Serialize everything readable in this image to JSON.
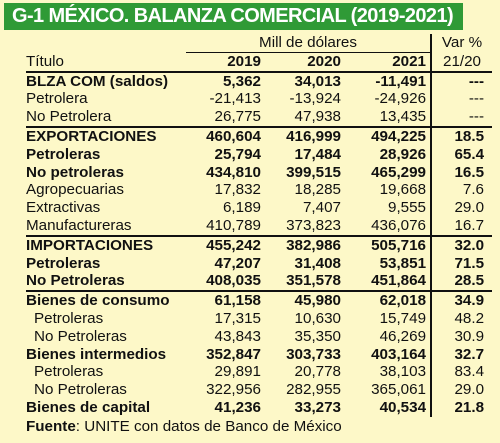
{
  "title": "G-1 MÉXICO. BALANZA COMERCIAL (2019-2021)",
  "header": {
    "unit": "Mill de dólares",
    "var_label": "Var %",
    "row_label": "Título",
    "years": [
      "2019",
      "2020",
      "2021"
    ],
    "var_period": "21/20"
  },
  "rows": [
    {
      "label": "BLZA COM (saldos)",
      "v2019": "5,362",
      "v2020": "34,013",
      "v2021": "-11,491",
      "var": "---"
    },
    {
      "label": "Petrolera",
      "v2019": "-21,413",
      "v2020": "-13,924",
      "v2021": "-24,926",
      "var": "---"
    },
    {
      "label": "No Petrolera",
      "v2019": "26,775",
      "v2020": "47,938",
      "v2021": "13,435",
      "var": "---"
    },
    {
      "label": "EXPORTACIONES",
      "v2019": "460,604",
      "v2020": "416,999",
      "v2021": "494,225",
      "var": "18.5"
    },
    {
      "label": "Petroleras",
      "v2019": "25,794",
      "v2020": "17,484",
      "v2021": "28,926",
      "var": "65.4"
    },
    {
      "label": "No petroleras",
      "v2019": "434,810",
      "v2020": "399,515",
      "v2021": "465,299",
      "var": "16.5"
    },
    {
      "label": "Agropecuarias",
      "v2019": "17,832",
      "v2020": "18,285",
      "v2021": "19,668",
      "var": "7.6"
    },
    {
      "label": "Extractivas",
      "v2019": "6,189",
      "v2020": "7,407",
      "v2021": "9,555",
      "var": "29.0"
    },
    {
      "label": "Manufactureras",
      "v2019": "410,789",
      "v2020": "373,823",
      "v2021": "436,076",
      "var": "16.7"
    },
    {
      "label": "IMPORTACIONES",
      "v2019": "455,242",
      "v2020": "382,986",
      "v2021": "505,716",
      "var": "32.0"
    },
    {
      "label": "Petroleras",
      "v2019": "47,207",
      "v2020": "31,408",
      "v2021": "53,851",
      "var": "71.5"
    },
    {
      "label": "No Petroleras",
      "v2019": "408,035",
      "v2020": "351,578",
      "v2021": "451,864",
      "var": "28.5"
    },
    {
      "label": "Bienes de consumo",
      "v2019": "61,158",
      "v2020": "45,980",
      "v2021": "62,018",
      "var": "34.9"
    },
    {
      "label": "Petroleras",
      "v2019": "17,315",
      "v2020": "10,630",
      "v2021": "15,749",
      "var": "48.2"
    },
    {
      "label": "No Petroleras",
      "v2019": "43,843",
      "v2020": "35,350",
      "v2021": "46,269",
      "var": "30.9"
    },
    {
      "label": "Bienes intermedios",
      "v2019": "352,847",
      "v2020": "303,733",
      "v2021": "403,164",
      "var": "32.7"
    },
    {
      "label": "Petroleras",
      "v2019": "29,891",
      "v2020": "20,778",
      "v2021": "38,103",
      "var": "83.4"
    },
    {
      "label": "No Petroleras",
      "v2019": "322,956",
      "v2020": "282,955",
      "v2021": "365,061",
      "var": "29.0"
    },
    {
      "label": "Bienes de capital",
      "v2019": "41,236",
      "v2020": "33,273",
      "v2021": "40,534",
      "var": "21.8"
    }
  ],
  "source": {
    "label": "Fuente",
    "text": ": UNITE con datos de Banco de México"
  }
}
